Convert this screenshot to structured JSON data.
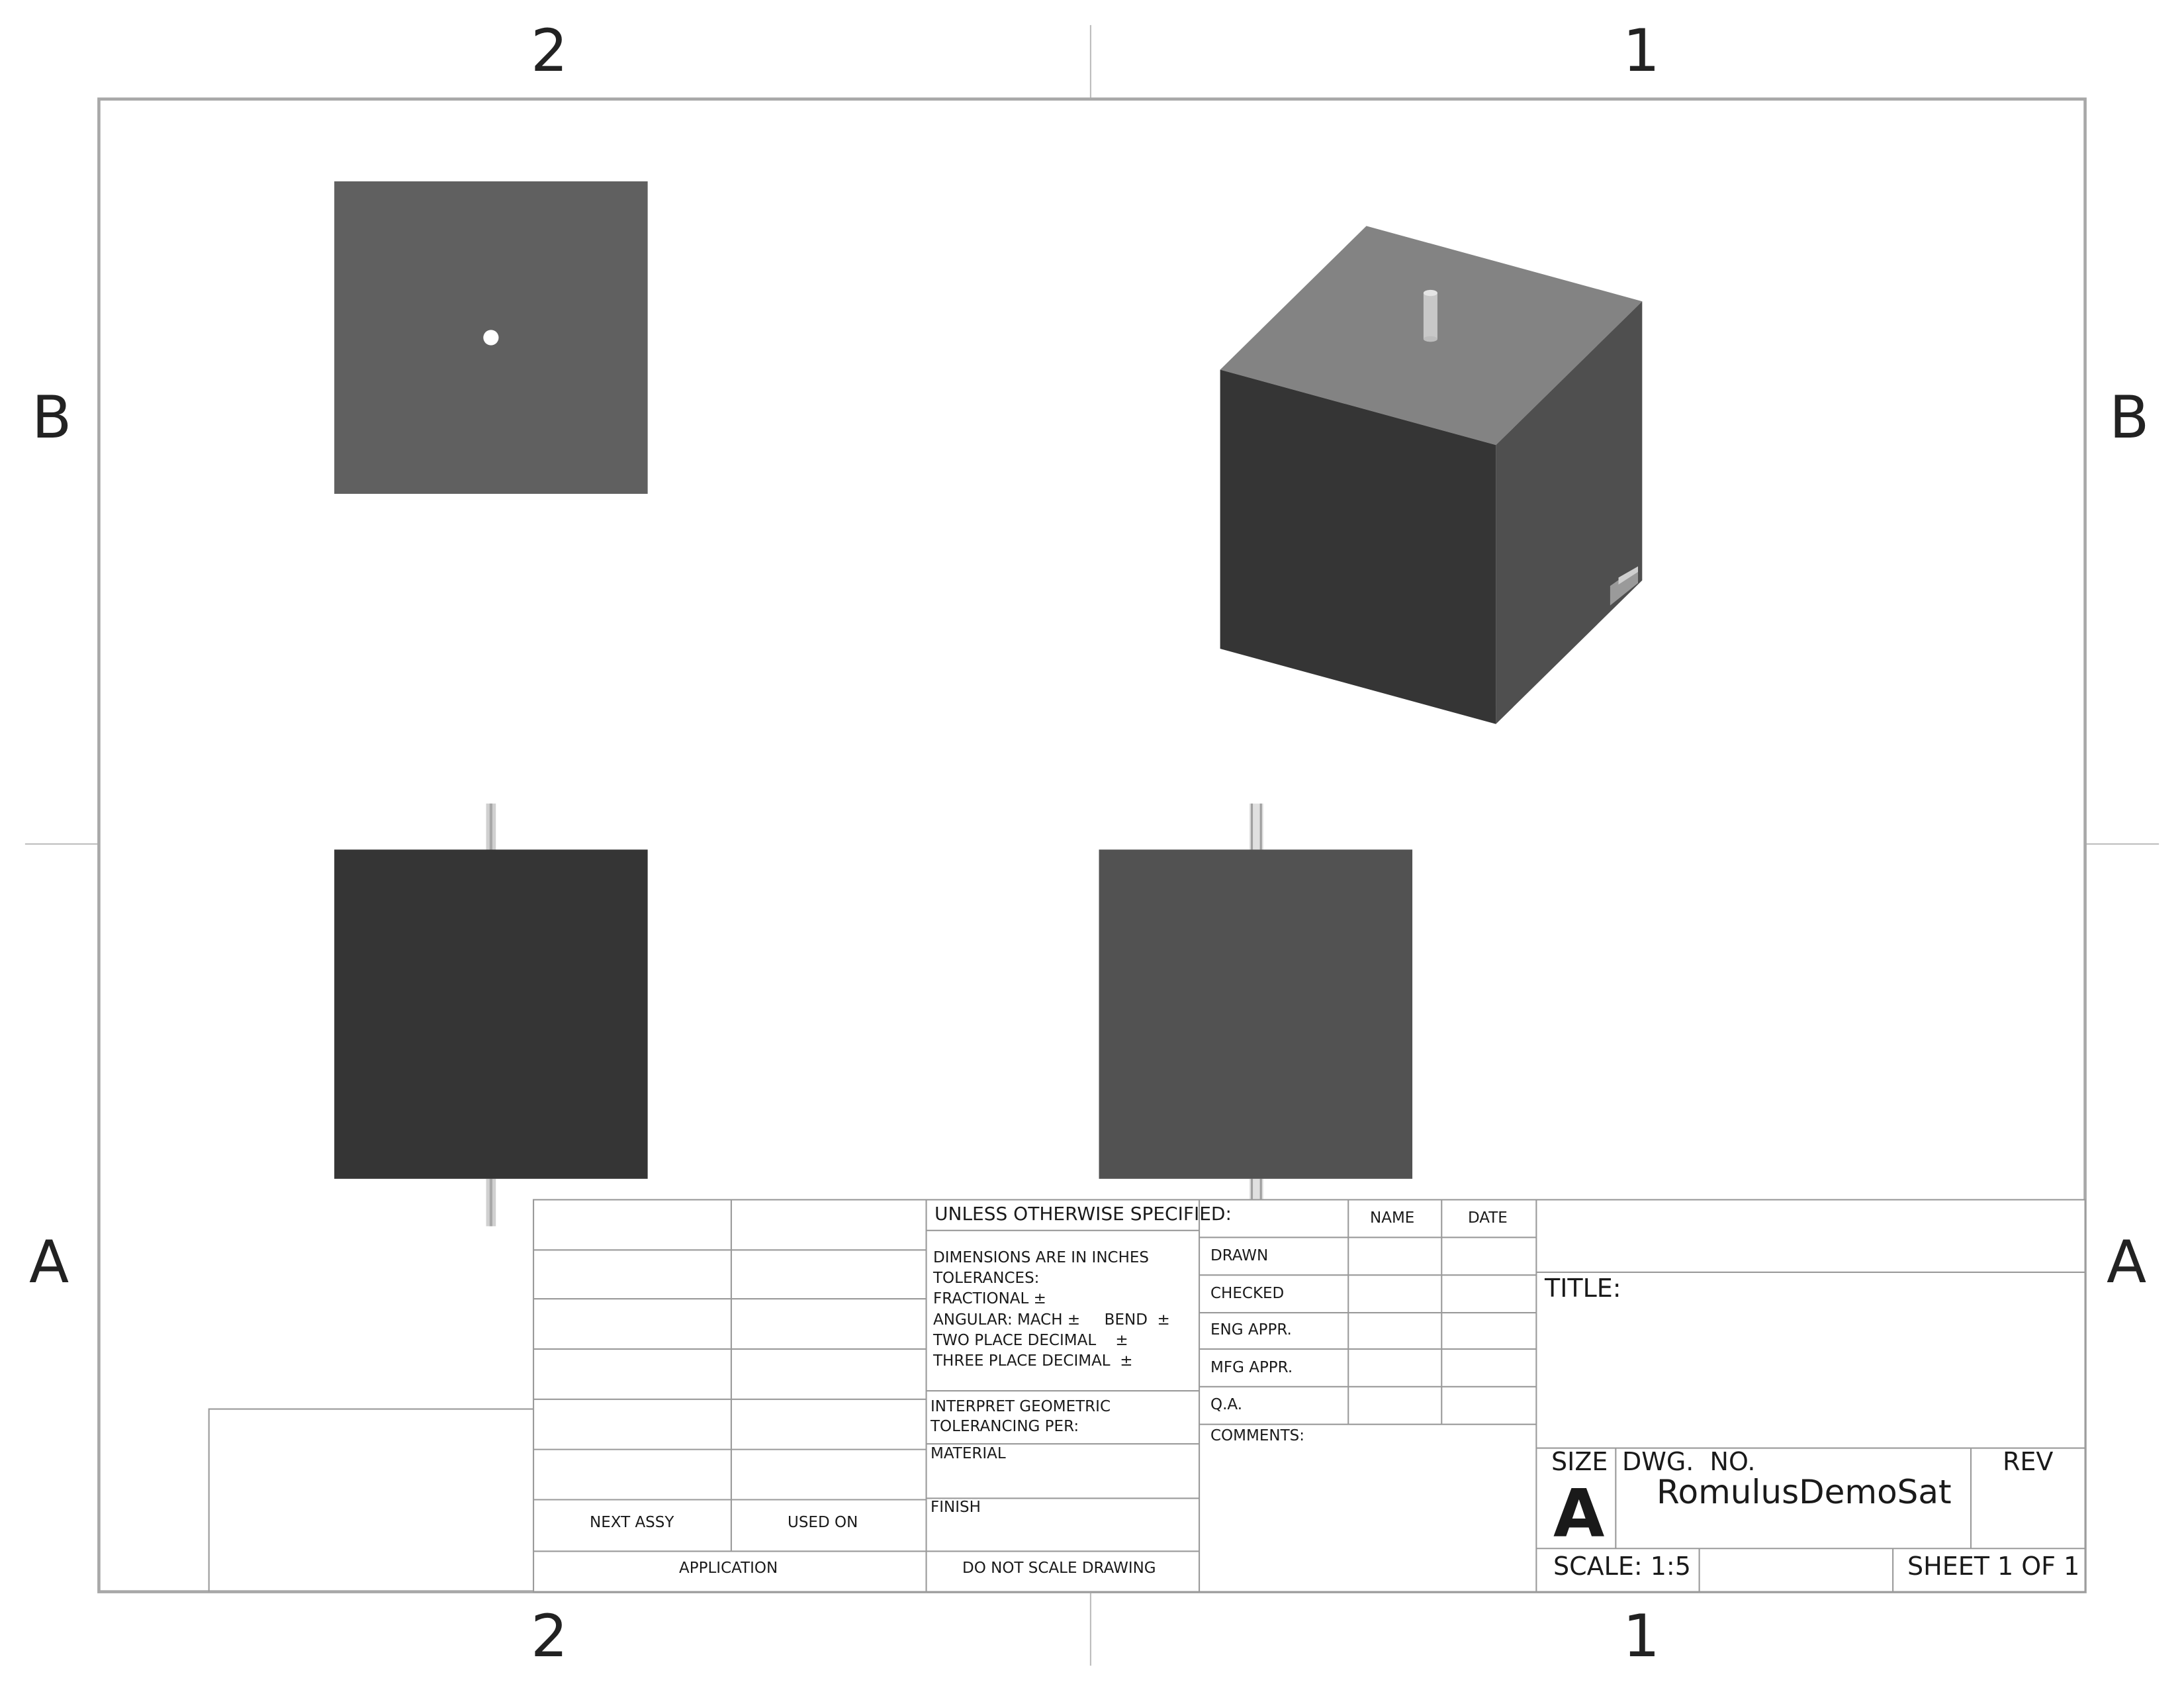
{
  "zones": {
    "top": [
      "2",
      "1"
    ],
    "bottom": [
      "2",
      "1"
    ],
    "left": [
      "B",
      "A"
    ],
    "right": [
      "B",
      "A"
    ]
  },
  "revision_block": {
    "next_assy": "NEXT ASSY",
    "used_on": "USED ON",
    "application": "APPLICATION"
  },
  "tolerance_block": {
    "header": "UNLESS OTHERWISE SPECIFIED:",
    "lines": [
      "DIMENSIONS ARE IN INCHES",
      "TOLERANCES:",
      "FRACTIONAL ±",
      "ANGULAR: MACH ±     BEND  ±",
      "TWO PLACE DECIMAL    ±",
      "THREE PLACE DECIMAL  ±"
    ],
    "interpret_line1": "INTERPRET GEOMETRIC",
    "interpret_line2": "TOLERANCING PER:",
    "material": "MATERIAL",
    "finish": "FINISH",
    "do_not_scale": "DO NOT SCALE DRAWING"
  },
  "approvals": {
    "name_header": "NAME",
    "date_header": "DATE",
    "rows": [
      "DRAWN",
      "CHECKED",
      "ENG APPR.",
      "MFG APPR.",
      "Q.A."
    ],
    "comments": "COMMENTS:"
  },
  "title_block": {
    "title_label": "TITLE:",
    "size_label": "SIZE",
    "size_value": "A",
    "dwg_no_label": "DWG.  NO.",
    "dwg_no_value": "RomulusDemoSat",
    "rev_label": "REV",
    "scale": "SCALE: 1:5",
    "sheet": "SHEET 1 OF 1"
  },
  "colors": {
    "border": "#a8a8a8",
    "table_line": "#9a9a9a",
    "top_view_face": "#606060",
    "front_view_face": "#353535",
    "side_view_face": "#525252",
    "iso_top_face": "#838383",
    "iso_front_face": "#353535",
    "iso_side_face": "#4f4f4f",
    "antenna": "#c8c8c8"
  },
  "views": [
    "top-view",
    "isometric-view",
    "front-view",
    "right-view"
  ]
}
